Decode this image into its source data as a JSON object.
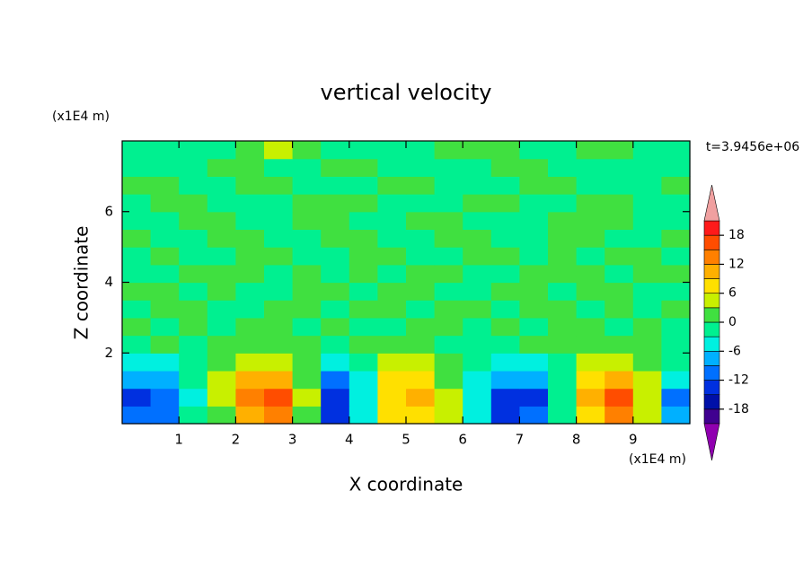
{
  "chart_data": {
    "type": "contour",
    "title": "vertical velocity",
    "x_label": "X coordinate",
    "y_label": "Z coordinate",
    "x_unit": "(x1E4 m)",
    "y_unit": "(x1E4 m)",
    "time_label": "t=3.9456e+06",
    "xlim": [
      0,
      10
    ],
    "ylim": [
      0,
      8
    ],
    "xticks": [
      1,
      2,
      3,
      4,
      5,
      6,
      7,
      8,
      9
    ],
    "yticks": [
      2,
      4,
      6
    ],
    "x": [
      0.25,
      0.75,
      1.25,
      1.75,
      2.25,
      2.75,
      3.25,
      3.75,
      4.25,
      4.75,
      5.25,
      5.75,
      6.25,
      6.75,
      7.25,
      7.75,
      8.25,
      8.75,
      9.25,
      9.75
    ],
    "y": [
      0.25,
      0.75,
      1.25,
      1.75,
      2.25,
      2.75,
      3.25,
      3.75,
      4.25,
      4.75,
      5.25,
      5.75,
      6.25,
      6.75,
      7.25,
      7.75
    ],
    "z": [
      [
        -11,
        -10,
        -3,
        2,
        10,
        13,
        2,
        -13,
        -4,
        6,
        8,
        3,
        -5,
        -14,
        -10,
        -2,
        8,
        12,
        4,
        -8
      ],
      [
        -13,
        -12,
        -4,
        4,
        13,
        15,
        3,
        -15,
        -5,
        7,
        9,
        3,
        -6,
        -13,
        -13,
        -3,
        10,
        16,
        5,
        -10
      ],
      [
        -8,
        -9,
        -3,
        3,
        9,
        10,
        2,
        -10,
        -4,
        6,
        6,
        2,
        -5,
        -9,
        -8,
        -2,
        7,
        11,
        4,
        -6
      ],
      [
        -4,
        -4,
        -2,
        1,
        4,
        5,
        1,
        -4,
        -3,
        3,
        3,
        1,
        -3,
        -4,
        -4,
        -1,
        3,
        5,
        2,
        -3
      ],
      [
        -1,
        1,
        -2,
        1,
        1,
        2,
        1,
        -1,
        1,
        1,
        1,
        -1,
        -1,
        -2,
        1,
        1,
        1,
        1,
        1,
        -1
      ],
      [
        1,
        -1,
        1,
        -1,
        1,
        1,
        -1,
        1,
        -1,
        -1,
        1,
        1,
        -1,
        1,
        -1,
        1,
        1,
        -1,
        1,
        -1
      ],
      [
        -1,
        1,
        1,
        -1,
        -1,
        1,
        1,
        -1,
        1,
        1,
        -1,
        1,
        1,
        -1,
        1,
        1,
        -1,
        1,
        -1,
        1
      ],
      [
        1,
        1,
        -1,
        1,
        -1,
        -1,
        1,
        1,
        -1,
        1,
        1,
        -1,
        -1,
        1,
        1,
        -1,
        1,
        1,
        -1,
        -1
      ],
      [
        -1,
        -1,
        1,
        1,
        1,
        -1,
        1,
        -1,
        1,
        -1,
        1,
        1,
        -1,
        -1,
        1,
        1,
        1,
        -1,
        1,
        1
      ],
      [
        -1,
        1,
        -1,
        -1,
        1,
        1,
        -1,
        -1,
        1,
        1,
        -1,
        -1,
        1,
        1,
        -1,
        1,
        -1,
        1,
        1,
        -1
      ],
      [
        1,
        -1,
        -1,
        1,
        1,
        -1,
        -1,
        1,
        1,
        -1,
        -1,
        1,
        1,
        -1,
        -1,
        1,
        1,
        -1,
        -1,
        1
      ],
      [
        -1,
        -1,
        1,
        1,
        -1,
        -1,
        1,
        1,
        -1,
        -1,
        1,
        1,
        -1,
        -1,
        -1,
        1,
        1,
        1,
        -1,
        -1
      ],
      [
        -1,
        1,
        1,
        -1,
        -1,
        -1,
        1,
        1,
        1,
        -1,
        -1,
        -1,
        1,
        1,
        -1,
        -1,
        1,
        1,
        -1,
        -1
      ],
      [
        1,
        1,
        -1,
        -1,
        1,
        1,
        -1,
        -1,
        -1,
        1,
        1,
        -1,
        -1,
        -1,
        1,
        1,
        -1,
        -1,
        -1,
        1
      ],
      [
        -1,
        -1,
        -1,
        1,
        1,
        -1,
        -1,
        1,
        1,
        -1,
        -1,
        -1,
        -1,
        1,
        1,
        -1,
        -1,
        -1,
        -1,
        -1
      ],
      [
        -1,
        -1,
        -1,
        -1,
        1,
        4,
        1,
        -1,
        -1,
        -1,
        -1,
        1,
        1,
        1,
        -1,
        -1,
        1,
        1,
        -1,
        -1
      ]
    ],
    "levels": [
      -21,
      -18,
      -15,
      -12,
      -9,
      -6,
      -3,
      0,
      3,
      6,
      9,
      12,
      15,
      18,
      21
    ],
    "colors": [
      "#400090",
      "#0010a8",
      "#0030e0",
      "#0070ff",
      "#00b0ff",
      "#00f0e0",
      "#00f090",
      "#40e040",
      "#c8f000",
      "#ffe000",
      "#ffb000",
      "#ff8000",
      "#ff4d00",
      "#ff1a1a"
    ],
    "under_color": "#9000b0",
    "over_color": "#f0a0a0",
    "colorbar_ticks": [
      -18,
      -12,
      -6,
      0,
      6,
      12,
      18
    ]
  }
}
